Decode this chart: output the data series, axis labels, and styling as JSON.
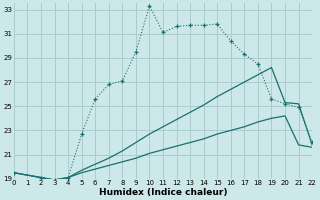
{
  "xlabel": "Humidex (Indice chaleur)",
  "bg_color": "#cce8e8",
  "grid_color": "#aacccc",
  "line_color": "#1a7070",
  "xlim": [
    0,
    22
  ],
  "ylim": [
    19,
    33.5
  ],
  "xticks": [
    0,
    1,
    2,
    3,
    4,
    5,
    6,
    7,
    8,
    9,
    10,
    11,
    12,
    13,
    14,
    15,
    16,
    17,
    18,
    19,
    20,
    21,
    22
  ],
  "yticks": [
    19,
    21,
    23,
    25,
    27,
    29,
    31,
    33
  ],
  "curve1_x": [
    0,
    2,
    3,
    4,
    5,
    6,
    7,
    8,
    9,
    10,
    11,
    12,
    13,
    14,
    15,
    16,
    17,
    18,
    19,
    20,
    21,
    22
  ],
  "curve1_y": [
    19.5,
    19.1,
    18.9,
    19.1,
    22.7,
    25.6,
    26.8,
    27.1,
    29.5,
    33.3,
    31.1,
    31.6,
    31.7,
    31.7,
    31.8,
    30.4,
    29.3,
    28.5,
    25.6,
    25.2,
    24.9,
    22.0
  ],
  "curve2_x": [
    0,
    2,
    3,
    4,
    5,
    6,
    7,
    8,
    9,
    10,
    11,
    12,
    13,
    14,
    15,
    16,
    17,
    18,
    19,
    20,
    21,
    22
  ],
  "curve2_y": [
    19.5,
    19.1,
    18.9,
    19.1,
    19.7,
    20.2,
    20.7,
    21.3,
    22.0,
    22.7,
    23.3,
    23.9,
    24.5,
    25.1,
    25.8,
    26.4,
    27.0,
    27.6,
    28.2,
    25.3,
    25.2,
    21.8
  ],
  "curve3_x": [
    0,
    2,
    3,
    4,
    5,
    6,
    7,
    8,
    9,
    10,
    11,
    12,
    13,
    14,
    15,
    16,
    17,
    18,
    19,
    20,
    21,
    22
  ],
  "curve3_y": [
    19.5,
    19.1,
    18.9,
    19.1,
    19.5,
    19.8,
    20.1,
    20.4,
    20.7,
    21.1,
    21.4,
    21.7,
    22.0,
    22.3,
    22.7,
    23.0,
    23.3,
    23.7,
    24.0,
    24.2,
    21.8,
    21.6
  ]
}
